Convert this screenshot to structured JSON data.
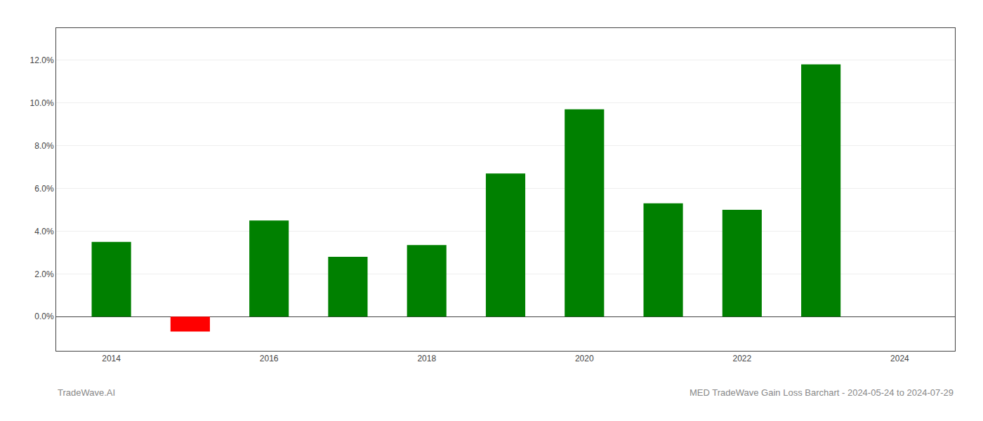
{
  "chart_data": {
    "type": "bar",
    "x": [
      2014,
      2015,
      2016,
      2017,
      2018,
      2019,
      2020,
      2021,
      2022,
      2023
    ],
    "values": [
      0.035,
      -0.007,
      0.045,
      0.028,
      0.0335,
      0.067,
      0.097,
      0.053,
      0.05,
      0.118
    ],
    "colors": [
      "#008000",
      "#ff0000",
      "#008000",
      "#008000",
      "#008000",
      "#008000",
      "#008000",
      "#008000",
      "#008000",
      "#008000"
    ],
    "xlim": [
      2013.3,
      2024.7
    ],
    "xticks": [
      2014,
      2016,
      2018,
      2020,
      2022,
      2024
    ],
    "ylim": [
      -0.016,
      0.135
    ],
    "yticks": [
      {
        "value": 0.0,
        "label": "0.0%"
      },
      {
        "value": 0.02,
        "label": "2.0%"
      },
      {
        "value": 0.04,
        "label": "4.0%"
      },
      {
        "value": 0.06,
        "label": "6.0%"
      },
      {
        "value": 0.08,
        "label": "8.0%"
      },
      {
        "value": 0.1,
        "label": "10.0%"
      },
      {
        "value": 0.12,
        "label": "12.0%"
      }
    ],
    "grid": "y",
    "annotations": [
      "TradeWave.AI",
      "MED TradeWave Gain Loss Barchart - 2024-05-24 to 2024-07-29"
    ]
  }
}
